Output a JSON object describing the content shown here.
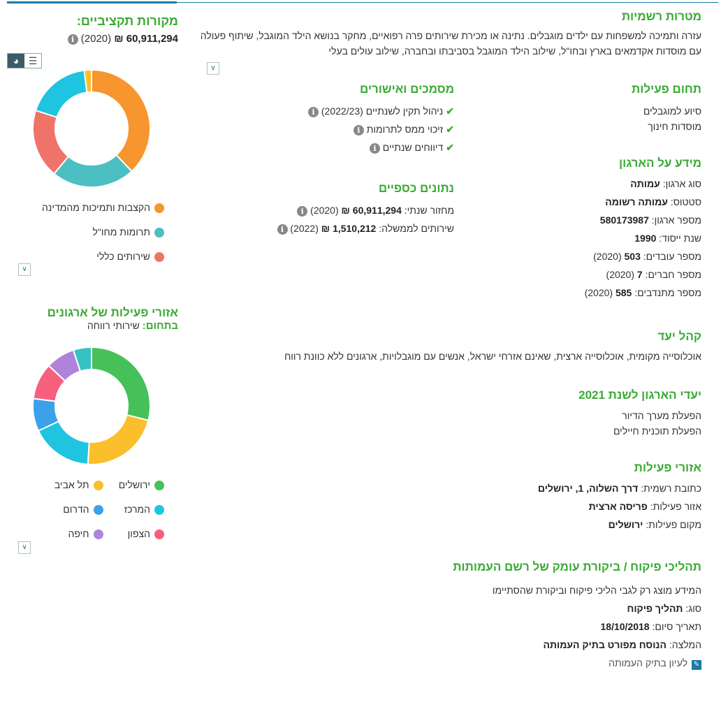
{
  "budget": {
    "title": "מקורות תקציביים:",
    "amount": "60,911,294 ₪",
    "year": "(2020)",
    "legend": [
      {
        "label": "הקצבות ותמיכות מהמדינה",
        "color": "#f7952e",
        "value": 38
      },
      {
        "label": "תרומות מחו\"ל",
        "color": "#4bbfc2",
        "value": 23
      },
      {
        "label": "שירותים כללי",
        "color": "#f0736a",
        "value": 19
      }
    ],
    "extra_slices": [
      {
        "color": "#1ec4e0",
        "value": 18
      },
      {
        "color": "#fbbf2c",
        "value": 2
      }
    ]
  },
  "regions": {
    "title": "אזורי פעילות של ארגונים",
    "subtitle_label": "בתחום:",
    "subtitle_value": "שירותי רווחה",
    "legend": [
      {
        "label": "ירושלים",
        "color": "#46c15a",
        "value": 29
      },
      {
        "label": "תל אביב",
        "color": "#fbbf2c",
        "value": 22
      },
      {
        "label": "המרכז",
        "color": "#1ec4e0",
        "value": 17
      },
      {
        "label": "הדרום",
        "color": "#3ba1ea",
        "value": 9
      },
      {
        "label": "הצפון",
        "color": "#f75f7e",
        "value": 10
      },
      {
        "label": "חיפה",
        "color": "#b083db",
        "value": 8
      }
    ],
    "extra_slices": [
      {
        "color": "#36c2c2",
        "value": 5
      }
    ]
  },
  "goals": {
    "title": "מטרות רשמיות",
    "text": "עזרה ותמיכה למשפחות עם ילדים מוגבלים. נתינה או מכירת שירותים פרה רפואיים, מחקר בנושא הילד המוגבל, שיתוף פעולה עם מוסדות אקדמאים בארץ ובחו\"ל, שילוב הילד המוגבל בסביבתו ובחברה, שילוב עולים בעלי"
  },
  "field": {
    "title": "תחום פעילות",
    "items": [
      "סיוע למוגבלים",
      "מוסדות חינוך"
    ]
  },
  "docs": {
    "title": "מסמכים ואישורים",
    "items": [
      "ניהול תקין לשנתיים (2022/23)",
      "זיכוי ממס לתרומות",
      "דיווחים שנתיים"
    ]
  },
  "finance": {
    "title": "נתונים כספיים",
    "rows": [
      {
        "label": "מחזור שנתי:",
        "value": "60,911,294 ₪",
        "year": "(2020)"
      },
      {
        "label": "שירותים לממשלה:",
        "value": "1,510,212 ₪",
        "year": "(2022)"
      }
    ]
  },
  "org": {
    "title": "מידע על הארגון",
    "rows": [
      {
        "label": "סוג ארגון:",
        "value": "עמותה",
        "year": ""
      },
      {
        "label": "סטטוס:",
        "value": "עמותה רשומה",
        "year": ""
      },
      {
        "label": "מספר ארגון:",
        "value": "580173987",
        "year": ""
      },
      {
        "label": "שנת ייסוד:",
        "value": "1990",
        "year": ""
      },
      {
        "label": "מספר עובדים:",
        "value": "503",
        "year": "(2020)"
      },
      {
        "label": "מספר חברים:",
        "value": "7",
        "year": "(2020)"
      },
      {
        "label": "מספר מתנדבים:",
        "value": "585",
        "year": "(2020)"
      }
    ]
  },
  "audience": {
    "title": "קהל יעד",
    "text": "אוכלוסייה מקומית, אוכלוסייה ארצית, שאינם אזרחי ישראל, אנשים עם מוגבלויות, ארגונים ללא כוונת רווח"
  },
  "targets": {
    "title": "יעדי הארגון לשנת 2021",
    "items": [
      "הפעלת מערך הדיור",
      "הפעלת תוכנית חיילים"
    ]
  },
  "areas": {
    "title": "אזורי פעילות",
    "rows": [
      {
        "label": "כתובת רשמית:",
        "value": "דרך השלוה, 1, ירושלים"
      },
      {
        "label": "אזור פעילות:",
        "value": "פריסה ארצית"
      },
      {
        "label": "מקום פעילות:",
        "value": "ירושלים"
      }
    ]
  },
  "audit": {
    "title": "תהליכי פיקוח / ביקורת עומק של רשם העמותות",
    "note": "המידע מוצג רק לגבי הליכי פיקוח וביקורת שהסתיימו",
    "rows": [
      {
        "label": "סוג:",
        "value": "תהליך פיקוח"
      },
      {
        "label": "תאריך סיום:",
        "value": "18/10/2018"
      },
      {
        "label": "המלצה:",
        "value": "הנוסח מפורט בתיק העמותה"
      }
    ],
    "link": "לעיון בתיק העמותה"
  }
}
